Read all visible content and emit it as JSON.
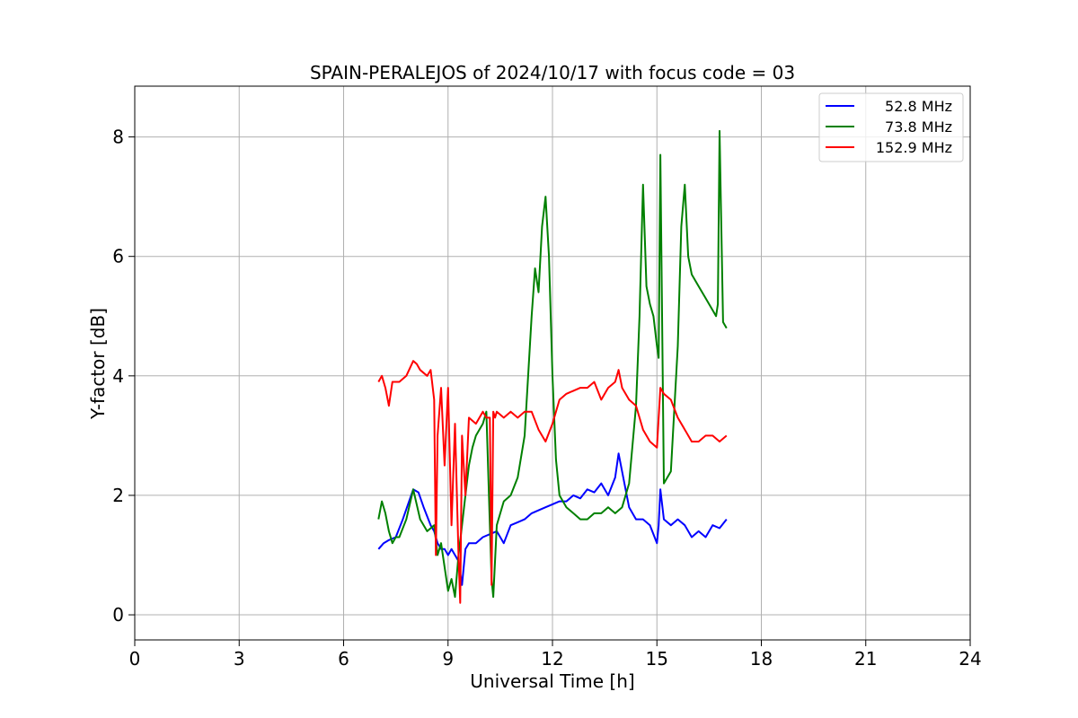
{
  "chart_data": {
    "type": "line",
    "title": "SPAIN-PERALEJOS of 2024/10/17 with focus code = 03",
    "xlabel": "Universal Time [h]",
    "ylabel": "Y-factor [dB]",
    "xlim": [
      0,
      24
    ],
    "ylim": [
      -0.42,
      8.85
    ],
    "xticks": [
      0,
      3,
      6,
      9,
      12,
      15,
      18,
      21,
      24
    ],
    "xtick_labels": [
      "0",
      "3",
      "6",
      "9",
      "12",
      "15",
      "18",
      "21",
      "24"
    ],
    "yticks": [
      0,
      2,
      4,
      6,
      8
    ],
    "ytick_labels": [
      "0",
      "2",
      "4",
      "6",
      "8"
    ],
    "grid": true,
    "legend_position": "top-right",
    "series": [
      {
        "name": "52.8 MHz",
        "color": "#0000ff",
        "x": [
          7.0,
          7.15,
          7.3,
          7.5,
          7.7,
          7.85,
          8.0,
          8.15,
          8.3,
          8.5,
          8.6,
          8.7,
          8.8,
          8.9,
          9.0,
          9.1,
          9.2,
          9.3,
          9.4,
          9.5,
          9.6,
          9.8,
          10.0,
          10.2,
          10.4,
          10.6,
          10.8,
          11.0,
          11.2,
          11.4,
          11.6,
          11.8,
          12.0,
          12.2,
          12.4,
          12.6,
          12.8,
          13.0,
          13.2,
          13.4,
          13.6,
          13.8,
          13.9,
          14.0,
          14.1,
          14.2,
          14.4,
          14.6,
          14.8,
          15.0,
          15.05,
          15.1,
          15.2,
          15.4,
          15.6,
          15.8,
          16.0,
          16.2,
          16.4,
          16.6,
          16.8,
          17.0
        ],
        "y": [
          1.1,
          1.2,
          1.25,
          1.3,
          1.6,
          1.85,
          2.1,
          2.05,
          1.8,
          1.5,
          1.4,
          1.2,
          1.1,
          1.1,
          1.0,
          1.1,
          1.0,
          0.9,
          0.5,
          1.1,
          1.2,
          1.2,
          1.3,
          1.35,
          1.4,
          1.2,
          1.5,
          1.55,
          1.6,
          1.7,
          1.75,
          1.8,
          1.85,
          1.9,
          1.9,
          2.0,
          1.95,
          2.1,
          2.05,
          2.2,
          2.0,
          2.3,
          2.7,
          2.4,
          2.1,
          1.8,
          1.6,
          1.6,
          1.5,
          1.2,
          1.5,
          2.1,
          1.6,
          1.5,
          1.6,
          1.5,
          1.3,
          1.4,
          1.3,
          1.5,
          1.45,
          1.6
        ]
      },
      {
        "name": "73.8 MHz",
        "color": "#008000",
        "x": [
          7.0,
          7.1,
          7.2,
          7.3,
          7.4,
          7.5,
          7.6,
          7.8,
          8.0,
          8.2,
          8.4,
          8.6,
          8.7,
          8.8,
          8.9,
          9.0,
          9.1,
          9.2,
          9.3,
          9.4,
          9.5,
          9.6,
          9.7,
          9.8,
          10.0,
          10.1,
          10.2,
          10.25,
          10.3,
          10.4,
          10.5,
          10.6,
          10.8,
          11.0,
          11.2,
          11.4,
          11.5,
          11.6,
          11.7,
          11.8,
          11.9,
          12.0,
          12.1,
          12.2,
          12.4,
          12.6,
          12.8,
          13.0,
          13.2,
          13.4,
          13.6,
          13.8,
          14.0,
          14.2,
          14.4,
          14.5,
          14.6,
          14.7,
          14.8,
          14.9,
          15.0,
          15.05,
          15.1,
          15.2,
          15.4,
          15.6,
          15.7,
          15.8,
          15.9,
          16.0,
          16.2,
          16.4,
          16.6,
          16.7,
          16.75,
          16.8,
          16.9,
          17.0
        ],
        "y": [
          1.6,
          1.9,
          1.7,
          1.4,
          1.2,
          1.3,
          1.3,
          1.6,
          2.1,
          1.6,
          1.4,
          1.5,
          1.0,
          1.2,
          0.8,
          0.4,
          0.6,
          0.3,
          1.0,
          1.5,
          2.0,
          2.5,
          2.8,
          3.0,
          3.2,
          3.4,
          1.5,
          0.6,
          0.3,
          1.5,
          1.7,
          1.9,
          2.0,
          2.3,
          3.0,
          5.0,
          5.8,
          5.4,
          6.5,
          7.0,
          6.0,
          4.0,
          2.6,
          2.0,
          1.8,
          1.7,
          1.6,
          1.6,
          1.7,
          1.7,
          1.8,
          1.7,
          1.8,
          2.2,
          3.5,
          5.0,
          7.2,
          5.5,
          5.2,
          5.0,
          4.5,
          4.3,
          7.7,
          2.2,
          2.4,
          4.5,
          6.5,
          7.2,
          6.0,
          5.7,
          5.5,
          5.3,
          5.1,
          5.0,
          5.2,
          8.1,
          4.9,
          4.8
        ]
      },
      {
        "name": "152.9 MHz",
        "color": "#ff0000",
        "x": [
          7.0,
          7.1,
          7.2,
          7.3,
          7.4,
          7.5,
          7.6,
          7.8,
          8.0,
          8.1,
          8.2,
          8.4,
          8.5,
          8.6,
          8.65,
          8.7,
          8.8,
          8.9,
          9.0,
          9.1,
          9.2,
          9.3,
          9.35,
          9.4,
          9.5,
          9.6,
          9.8,
          10.0,
          10.1,
          10.2,
          10.25,
          10.3,
          10.35,
          10.4,
          10.6,
          10.8,
          11.0,
          11.2,
          11.4,
          11.6,
          11.8,
          12.0,
          12.2,
          12.4,
          12.6,
          12.8,
          13.0,
          13.2,
          13.4,
          13.6,
          13.8,
          13.9,
          14.0,
          14.2,
          14.4,
          14.6,
          14.8,
          15.0,
          15.1,
          15.2,
          15.4,
          15.6,
          15.8,
          16.0,
          16.2,
          16.4,
          16.6,
          16.8,
          17.0
        ],
        "y": [
          3.9,
          4.0,
          3.8,
          3.5,
          3.9,
          3.9,
          3.9,
          4.0,
          4.25,
          4.2,
          4.1,
          4.0,
          4.1,
          3.6,
          1.0,
          3.0,
          3.8,
          2.5,
          3.8,
          1.5,
          3.2,
          1.0,
          0.2,
          3.0,
          2.0,
          3.3,
          3.2,
          3.4,
          3.3,
          3.3,
          0.5,
          3.4,
          3.3,
          3.4,
          3.3,
          3.4,
          3.3,
          3.4,
          3.4,
          3.1,
          2.9,
          3.2,
          3.6,
          3.7,
          3.75,
          3.8,
          3.8,
          3.9,
          3.6,
          3.8,
          3.9,
          4.1,
          3.8,
          3.6,
          3.5,
          3.1,
          2.9,
          2.8,
          3.8,
          3.7,
          3.6,
          3.3,
          3.1,
          2.9,
          2.9,
          3.0,
          3.0,
          2.9,
          3.0
        ]
      }
    ]
  }
}
